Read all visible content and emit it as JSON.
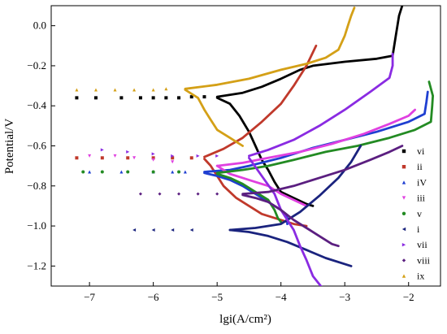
{
  "chart_data": {
    "type": "scatter",
    "xlabel": "lgi(A/cm²)",
    "ylabel": "Potential/V",
    "xlim": [
      -7.6,
      -1.5
    ],
    "ylim": [
      -1.3,
      0.1
    ],
    "xticks": [
      -7,
      -6,
      -5,
      -4,
      -3,
      -2
    ],
    "yticks": [
      0.0,
      -0.2,
      -0.4,
      -0.6,
      -0.8,
      -1.0,
      -1.2
    ],
    "xtick_labels": [
      "−7",
      "−6",
      "−5",
      "−4",
      "−3",
      "−2"
    ],
    "ytick_labels": [
      "0.0",
      "−0.2",
      "−0.4",
      "−0.6",
      "−0.8",
      "−1.0",
      "−1.2"
    ],
    "legend_position": "right",
    "grid": false,
    "series": [
      {
        "name": "vi",
        "color": "#000000",
        "marker": "square",
        "anodic": [
          [
            -5.0,
            -0.355
          ],
          [
            -4.6,
            -0.335
          ],
          [
            -4.3,
            -0.305
          ],
          [
            -4.0,
            -0.265
          ],
          [
            -3.7,
            -0.22
          ],
          [
            -3.5,
            -0.2
          ],
          [
            -3.0,
            -0.18
          ],
          [
            -2.5,
            -0.165
          ],
          [
            -2.25,
            -0.15
          ],
          [
            -2.2,
            -0.05
          ],
          [
            -2.15,
            0.05
          ],
          [
            -2.1,
            0.1
          ]
        ],
        "cathodic": [
          [
            -5.0,
            -0.36
          ],
          [
            -4.8,
            -0.39
          ],
          [
            -4.65,
            -0.45
          ],
          [
            -4.5,
            -0.53
          ],
          [
            -4.4,
            -0.6
          ],
          [
            -4.3,
            -0.67
          ],
          [
            -4.2,
            -0.72
          ],
          [
            -4.1,
            -0.78
          ],
          [
            -4.0,
            -0.83
          ],
          [
            -3.8,
            -0.86
          ],
          [
            -3.6,
            -0.89
          ],
          [
            -3.5,
            -0.9
          ]
        ],
        "scatter": [
          [
            -7.2,
            -0.36
          ],
          [
            -6.9,
            -0.36
          ],
          [
            -6.5,
            -0.36
          ],
          [
            -6.2,
            -0.36
          ],
          [
            -6.0,
            -0.36
          ],
          [
            -5.8,
            -0.36
          ],
          [
            -5.6,
            -0.36
          ],
          [
            -5.4,
            -0.355
          ],
          [
            -5.2,
            -0.355
          ]
        ]
      },
      {
        "name": "ii",
        "color": "#c0392b",
        "marker": "square",
        "anodic": [
          [
            -5.2,
            -0.655
          ],
          [
            -4.9,
            -0.615
          ],
          [
            -4.6,
            -0.56
          ],
          [
            -4.3,
            -0.48
          ],
          [
            -4.0,
            -0.39
          ],
          [
            -3.8,
            -0.3
          ],
          [
            -3.6,
            -0.2
          ],
          [
            -3.45,
            -0.1
          ]
        ],
        "cathodic": [
          [
            -5.2,
            -0.665
          ],
          [
            -5.1,
            -0.7
          ],
          [
            -5.0,
            -0.75
          ],
          [
            -4.9,
            -0.8
          ],
          [
            -4.7,
            -0.86
          ],
          [
            -4.5,
            -0.9
          ],
          [
            -4.3,
            -0.94
          ],
          [
            -4.0,
            -0.97
          ],
          [
            -3.8,
            -0.99
          ],
          [
            -3.6,
            -1.0
          ]
        ],
        "scatter": [
          [
            -7.2,
            -0.66
          ],
          [
            -6.8,
            -0.66
          ],
          [
            -6.4,
            -0.66
          ],
          [
            -6.0,
            -0.66
          ],
          [
            -5.7,
            -0.66
          ],
          [
            -5.4,
            -0.66
          ]
        ]
      },
      {
        "name": "iV",
        "color": "#1f3fd1",
        "marker": "triangle",
        "anodic": [
          [
            -5.2,
            -0.73
          ],
          [
            -4.8,
            -0.72
          ],
          [
            -4.5,
            -0.7
          ],
          [
            -4.0,
            -0.66
          ],
          [
            -3.5,
            -0.61
          ],
          [
            -3.0,
            -0.57
          ],
          [
            -2.5,
            -0.53
          ],
          [
            -2.0,
            -0.48
          ],
          [
            -1.75,
            -0.44
          ],
          [
            -1.72,
            -0.38
          ],
          [
            -1.7,
            -0.33
          ]
        ],
        "cathodic": [
          [
            -5.2,
            -0.735
          ],
          [
            -5.0,
            -0.75
          ],
          [
            -4.8,
            -0.77
          ],
          [
            -4.6,
            -0.8
          ],
          [
            -4.4,
            -0.84
          ],
          [
            -4.2,
            -0.88
          ],
          [
            -4.0,
            -0.92
          ],
          [
            -3.9,
            -0.96
          ],
          [
            -3.9,
            -0.99
          ]
        ],
        "scatter": [
          [
            -7.0,
            -0.73
          ],
          [
            -6.5,
            -0.73
          ],
          [
            -6.0,
            -0.73
          ],
          [
            -5.7,
            -0.73
          ],
          [
            -5.5,
            -0.73
          ]
        ]
      },
      {
        "name": "iii",
        "color": "#e040e0",
        "marker": "triangle_down",
        "anodic": [
          [
            -5.0,
            -0.7
          ],
          [
            -4.6,
            -0.685
          ],
          [
            -4.2,
            -0.66
          ],
          [
            -3.7,
            -0.63
          ],
          [
            -3.2,
            -0.59
          ],
          [
            -2.7,
            -0.54
          ],
          [
            -2.3,
            -0.49
          ],
          [
            -2.0,
            -0.45
          ],
          [
            -1.9,
            -0.42
          ]
        ],
        "cathodic": [
          [
            -5.0,
            -0.7
          ],
          [
            -4.9,
            -0.72
          ],
          [
            -4.8,
            -0.74
          ],
          [
            -4.6,
            -0.76
          ],
          [
            -4.4,
            -0.78
          ],
          [
            -4.2,
            -0.8
          ],
          [
            -4.0,
            -0.84
          ],
          [
            -3.8,
            -0.87
          ],
          [
            -3.6,
            -0.9
          ]
        ],
        "scatter": [
          [
            -7.0,
            -0.65
          ],
          [
            -6.6,
            -0.65
          ],
          [
            -6.3,
            -0.66
          ],
          [
            -6.0,
            -0.67
          ],
          [
            -5.7,
            -0.68
          ]
        ]
      },
      {
        "name": "v",
        "color": "#238b23",
        "marker": "circle",
        "anodic": [
          [
            -5.0,
            -0.735
          ],
          [
            -4.6,
            -0.72
          ],
          [
            -4.2,
            -0.7
          ],
          [
            -3.8,
            -0.67
          ],
          [
            -3.3,
            -0.63
          ],
          [
            -2.8,
            -0.6
          ],
          [
            -2.3,
            -0.56
          ],
          [
            -1.9,
            -0.52
          ],
          [
            -1.65,
            -0.48
          ],
          [
            -1.63,
            -0.4
          ],
          [
            -1.62,
            -0.35
          ],
          [
            -1.68,
            -0.28
          ]
        ],
        "cathodic": [
          [
            -5.0,
            -0.74
          ],
          [
            -4.8,
            -0.76
          ],
          [
            -4.6,
            -0.79
          ],
          [
            -4.4,
            -0.83
          ],
          [
            -4.2,
            -0.87
          ],
          [
            -4.1,
            -0.92
          ],
          [
            -4.05,
            -0.96
          ],
          [
            -4.0,
            -0.98
          ]
        ],
        "scatter": [
          [
            -7.1,
            -0.73
          ],
          [
            -6.8,
            -0.73
          ],
          [
            -6.4,
            -0.73
          ],
          [
            -6.0,
            -0.73
          ],
          [
            -5.6,
            -0.73
          ]
        ]
      },
      {
        "name": "i",
        "color": "#1a237e",
        "marker": "triangle_left",
        "anodic": [
          [
            -4.8,
            -1.02
          ],
          [
            -4.4,
            -1.01
          ],
          [
            -4.0,
            -0.99
          ],
          [
            -3.7,
            -0.93
          ],
          [
            -3.4,
            -0.85
          ],
          [
            -3.1,
            -0.76
          ],
          [
            -2.9,
            -0.68
          ],
          [
            -2.75,
            -0.6
          ]
        ],
        "cathodic": [
          [
            -4.8,
            -1.02
          ],
          [
            -4.5,
            -1.03
          ],
          [
            -4.2,
            -1.05
          ],
          [
            -3.9,
            -1.08
          ],
          [
            -3.6,
            -1.12
          ],
          [
            -3.3,
            -1.16
          ],
          [
            -3.0,
            -1.19
          ],
          [
            -2.9,
            -1.2
          ]
        ],
        "scatter": [
          [
            -6.3,
            -1.02
          ],
          [
            -6.0,
            -1.02
          ],
          [
            -5.7,
            -1.02
          ],
          [
            -5.4,
            -1.02
          ]
        ]
      },
      {
        "name": "vii",
        "color": "#8a2be2",
        "marker": "triangle_right",
        "anodic": [
          [
            -4.5,
            -0.65
          ],
          [
            -4.2,
            -0.62
          ],
          [
            -3.8,
            -0.57
          ],
          [
            -3.4,
            -0.5
          ],
          [
            -3.0,
            -0.42
          ],
          [
            -2.6,
            -0.33
          ],
          [
            -2.3,
            -0.26
          ],
          [
            -2.25,
            -0.2
          ],
          [
            -2.25,
            -0.14
          ]
        ],
        "cathodic": [
          [
            -4.5,
            -0.66
          ],
          [
            -4.3,
            -0.75
          ],
          [
            -4.1,
            -0.84
          ],
          [
            -4.0,
            -0.92
          ],
          [
            -3.8,
            -1.02
          ],
          [
            -3.7,
            -1.1
          ],
          [
            -3.6,
            -1.17
          ],
          [
            -3.5,
            -1.25
          ],
          [
            -3.35,
            -1.31
          ]
        ],
        "scatter": [
          [
            -6.8,
            -0.62
          ],
          [
            -6.4,
            -0.63
          ],
          [
            -6.0,
            -0.64
          ],
          [
            -5.7,
            -0.65
          ],
          [
            -5.3,
            -0.65
          ],
          [
            -5.0,
            -0.65
          ]
        ]
      },
      {
        "name": "viii",
        "color": "#5b1f80",
        "marker": "diamond",
        "anodic": [
          [
            -4.6,
            -0.84
          ],
          [
            -4.2,
            -0.83
          ],
          [
            -3.8,
            -0.8
          ],
          [
            -3.4,
            -0.76
          ],
          [
            -3.0,
            -0.72
          ],
          [
            -2.6,
            -0.67
          ],
          [
            -2.3,
            -0.63
          ],
          [
            -2.1,
            -0.6
          ]
        ],
        "cathodic": [
          [
            -4.6,
            -0.845
          ],
          [
            -4.4,
            -0.86
          ],
          [
            -4.2,
            -0.88
          ],
          [
            -4.0,
            -0.92
          ],
          [
            -3.8,
            -0.97
          ],
          [
            -3.6,
            -1.01
          ],
          [
            -3.4,
            -1.05
          ],
          [
            -3.2,
            -1.09
          ],
          [
            -3.1,
            -1.1
          ]
        ],
        "scatter": [
          [
            -6.2,
            -0.84
          ],
          [
            -5.9,
            -0.84
          ],
          [
            -5.6,
            -0.84
          ],
          [
            -5.3,
            -0.84
          ],
          [
            -5.0,
            -0.84
          ]
        ]
      },
      {
        "name": "ix",
        "color": "#d4a017",
        "marker": "triangle_up",
        "anodic": [
          [
            -5.5,
            -0.315
          ],
          [
            -5.0,
            -0.295
          ],
          [
            -4.5,
            -0.265
          ],
          [
            -4.0,
            -0.22
          ],
          [
            -3.6,
            -0.19
          ],
          [
            -3.3,
            -0.16
          ],
          [
            -3.1,
            -0.12
          ],
          [
            -3.0,
            -0.05
          ],
          [
            -2.95,
            0.0
          ],
          [
            -2.9,
            0.05
          ],
          [
            -2.85,
            0.09
          ]
        ],
        "cathodic": [
          [
            -5.5,
            -0.32
          ],
          [
            -5.3,
            -0.36
          ],
          [
            -5.2,
            -0.42
          ],
          [
            -5.1,
            -0.47
          ],
          [
            -5.0,
            -0.52
          ],
          [
            -4.8,
            -0.56
          ],
          [
            -4.6,
            -0.6
          ]
        ],
        "scatter": [
          [
            -7.2,
            -0.32
          ],
          [
            -6.9,
            -0.32
          ],
          [
            -6.6,
            -0.32
          ],
          [
            -6.3,
            -0.32
          ],
          [
            -6.0,
            -0.32
          ],
          [
            -5.8,
            -0.315
          ]
        ]
      }
    ]
  }
}
